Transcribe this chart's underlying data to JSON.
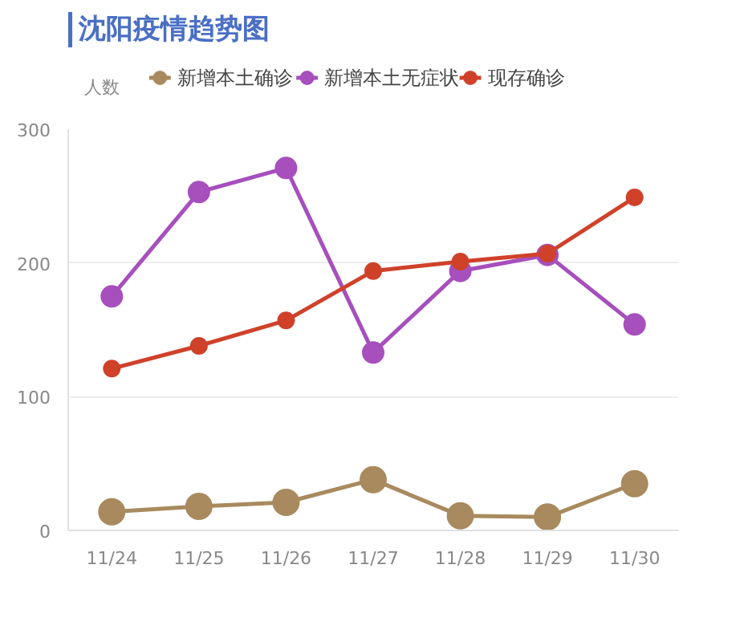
{
  "chart_data": {
    "type": "line",
    "title": "沈阳疫情趋势图",
    "ylabel": "人数",
    "categories": [
      "11/24",
      "11/25",
      "11/26",
      "11/27",
      "11/28",
      "11/29",
      "11/30"
    ],
    "series": [
      {
        "name": "新增本土确诊",
        "color": "#a88a5e",
        "values": [
          14,
          18,
          21,
          38,
          11,
          10,
          35
        ]
      },
      {
        "name": "新增本土无症状",
        "color": "#a64fbd",
        "values": [
          175,
          253,
          271,
          133,
          194,
          206,
          154
        ]
      },
      {
        "name": "现存确诊",
        "color": "#d0412a",
        "values": [
          121,
          138,
          157,
          194,
          201,
          207,
          249
        ]
      }
    ],
    "ylim": [
      0,
      300
    ],
    "yticks": [
      0,
      100,
      200,
      300
    ],
    "grid": "y",
    "legend": "top",
    "marker": "circle",
    "line_style": "solid"
  }
}
